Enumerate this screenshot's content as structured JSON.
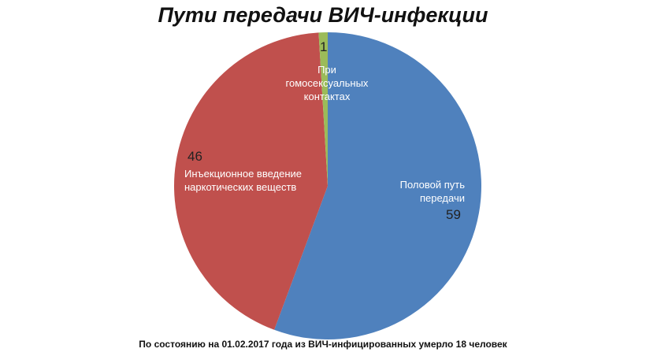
{
  "chart_data": {
    "type": "pie",
    "title": "Пути передачи ВИЧ-инфекции",
    "categories": [
      "Половой путь передачи",
      "Инъекционное введение наркотических веществ",
      "При гомосексуальных контактах"
    ],
    "values": [
      59,
      46,
      1
    ],
    "colors": [
      "#4f81bd",
      "#c0504d",
      "#9bbb59"
    ],
    "note": "По состоянию на 01.02.2017  года из ВИЧ-инфицированных умерло 18 человек"
  }
}
